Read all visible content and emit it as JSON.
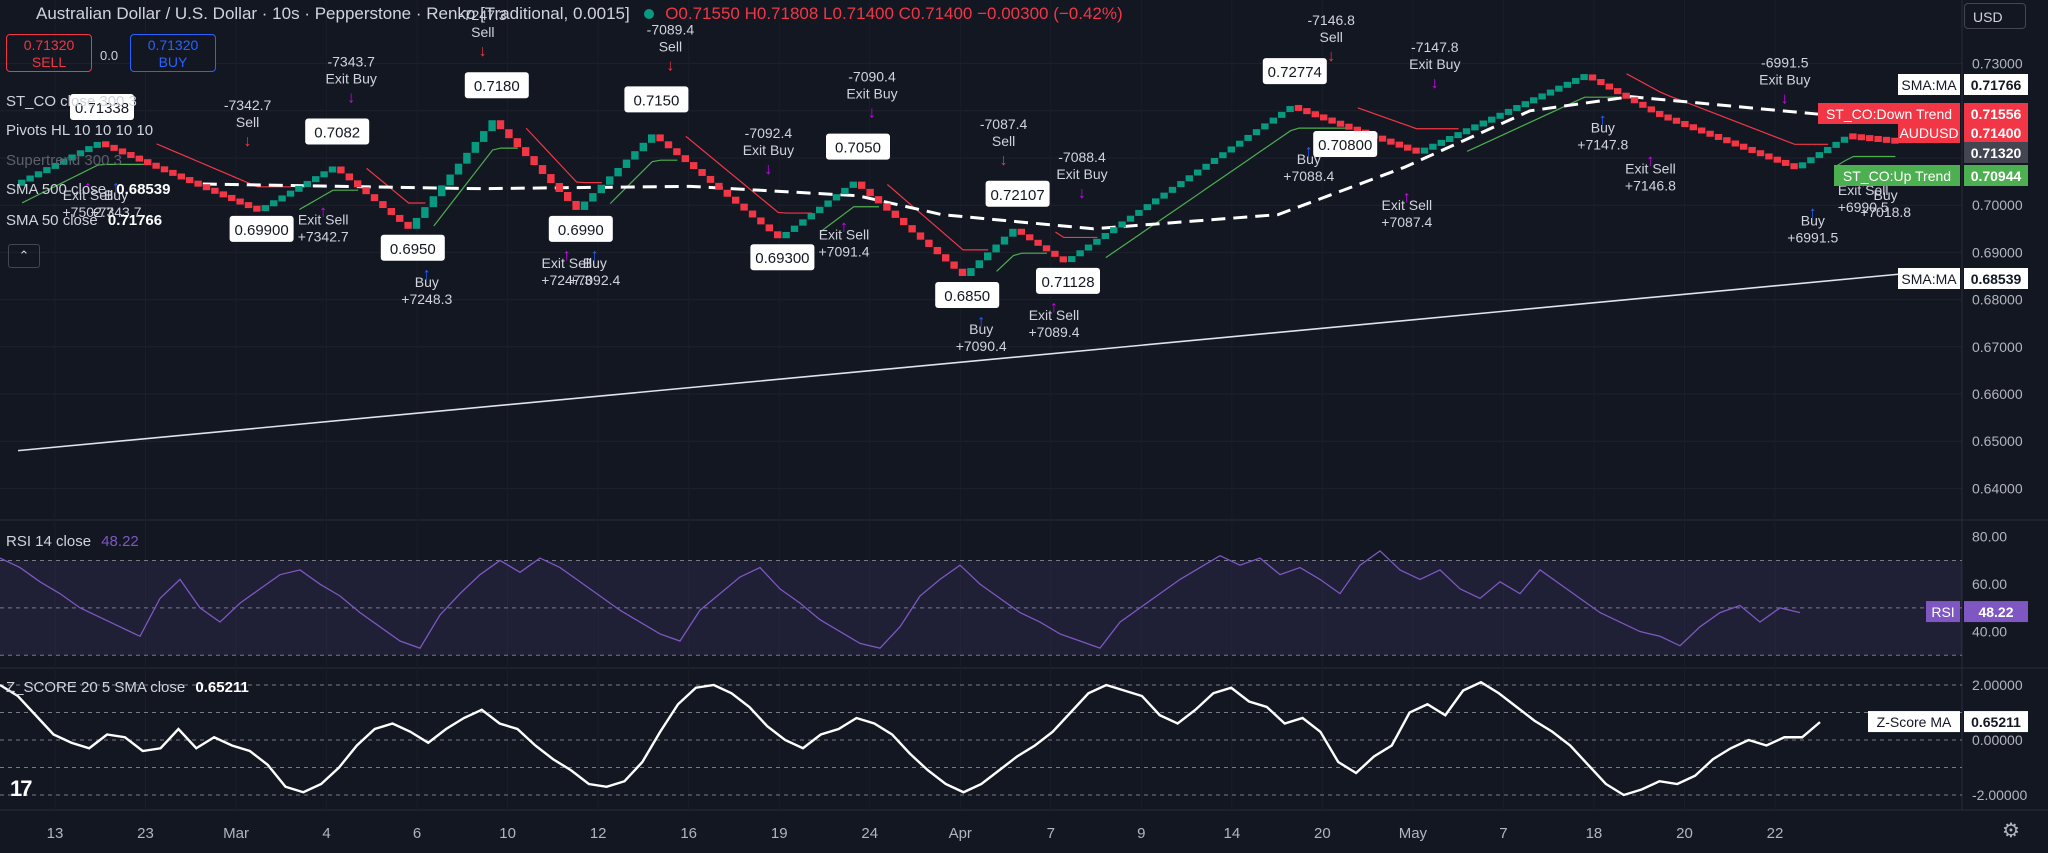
{
  "header": {
    "title": "Australian Dollar / U.S. Dollar · 10s · Pepperstone · Renko [Traditional, 0.0015]",
    "ohlc": "O0.71550 H0.71808 L0.71400 C0.71400 −0.00300 (−0.42%)"
  },
  "trade_panel": {
    "sell_price": "0.71320",
    "sell_label": "SELL",
    "spread": "0.0",
    "buy_price": "0.71320",
    "buy_label": "BUY"
  },
  "currency": "USD",
  "indicator_legends": {
    "st_co": "ST_CO close 300 3",
    "pivots": "Pivots HL 10 10 10 10",
    "supertrend": "Supertrend 300 3",
    "sma500_label": "SMA 500 close",
    "sma500_value": "0.68539",
    "sma50_label": "SMA 50 close",
    "sma50_value": "0.71766",
    "rsi_label": "RSI 14 close",
    "rsi_value": "48.22",
    "z_label": "Z_SCORE 20 5 SMA close",
    "z_value": "0.65211"
  },
  "colors": {
    "background": "#131722",
    "up_brick": "#089981",
    "down_brick": "#f23645",
    "signal_marker": "#d500f9",
    "buy_arrow": "#2962ff",
    "sell_arrow": "#f23645",
    "rsi_line": "#7e57c2",
    "st_up": "#4caf50",
    "st_down": "#f23645"
  },
  "chart_data": [
    {
      "type": "renko",
      "title": "Australian Dollar / U.S. Dollar · 10s · Pepperstone · Renko [Traditional, 0.0015]",
      "yticks": [
        "0.73000",
        "0.72000",
        "0.71000",
        "0.70000",
        "0.69000",
        "0.68000",
        "0.67000",
        "0.66000",
        "0.65000",
        "0.64000"
      ],
      "ylim": [
        0.635,
        0.735
      ],
      "xticks": [
        "13",
        "23",
        "Mar",
        "4",
        "6",
        "10",
        "12",
        "16",
        "19",
        "24",
        "Apr",
        "7",
        "9",
        "14",
        "20",
        "May",
        "7",
        "18",
        "20",
        "22"
      ],
      "brick_size": 0.0015,
      "renko_path": [
        {
          "x": 0,
          "y": 0.7045
        },
        {
          "x": 10,
          "y": 0.7134
        },
        {
          "x": 29,
          "y": 0.699
        },
        {
          "x": 38,
          "y": 0.7082
        },
        {
          "x": 47,
          "y": 0.695
        },
        {
          "x": 57,
          "y": 0.718
        },
        {
          "x": 67,
          "y": 0.699
        },
        {
          "x": 76,
          "y": 0.715
        },
        {
          "x": 91,
          "y": 0.693
        },
        {
          "x": 100,
          "y": 0.705
        },
        {
          "x": 113,
          "y": 0.685
        },
        {
          "x": 119,
          "y": 0.695
        },
        {
          "x": 125,
          "y": 0.688
        },
        {
          "x": 152,
          "y": 0.721
        },
        {
          "x": 158,
          "y": 0.717
        },
        {
          "x": 167,
          "y": 0.7113
        },
        {
          "x": 187,
          "y": 0.7277
        },
        {
          "x": 196,
          "y": 0.719
        },
        {
          "x": 212,
          "y": 0.708
        },
        {
          "x": 218,
          "y": 0.7145
        },
        {
          "x": 224,
          "y": 0.7134
        }
      ],
      "annotations": [
        {
          "text": "0.71338",
          "kind": "pivot-high"
        },
        {
          "text": "0.69900",
          "kind": "pivot-low"
        },
        {
          "text": "0.7082",
          "kind": "pivot-high"
        },
        {
          "text": "0.6950",
          "kind": "pivot-low"
        },
        {
          "text": "0.7180",
          "kind": "pivot-high"
        },
        {
          "text": "0.6990",
          "kind": "pivot-low"
        },
        {
          "text": "0.7150",
          "kind": "pivot-high"
        },
        {
          "text": "0.69300",
          "kind": "pivot-low"
        },
        {
          "text": "0.7050",
          "kind": "pivot-high"
        },
        {
          "text": "0.6850",
          "kind": "pivot-low"
        },
        {
          "text": "0.72107",
          "kind": "pivot-high"
        },
        {
          "text": "0.71128",
          "kind": "pivot-low"
        },
        {
          "text": "0.72774",
          "kind": "pivot-high"
        },
        {
          "text": "0.70800",
          "kind": "pivot-low"
        }
      ],
      "trade_labels": [
        {
          "text": [
            "Exit Sell",
            "+7502.7"
          ],
          "kind": "exit-sell"
        },
        {
          "text": [
            "Buy",
            "+7343.7"
          ],
          "kind": "buy"
        },
        {
          "text": [
            "-7342.7",
            "Sell"
          ],
          "kind": "sell"
        },
        {
          "text": [
            "-7343.7",
            "Exit Buy"
          ],
          "kind": "exit-buy"
        },
        {
          "text": [
            "Exit Sell",
            "+7342.7"
          ],
          "kind": "exit-sell"
        },
        {
          "text": [
            "Buy",
            "+7248.3"
          ],
          "kind": "buy"
        },
        {
          "text": [
            "-7247.3",
            "Sell"
          ],
          "kind": "sell"
        },
        {
          "text": [
            "Buy",
            "+7092.4"
          ],
          "kind": "buy"
        },
        {
          "text": [
            "Exit Sell",
            "+7247.3"
          ],
          "kind": "exit-sell"
        },
        {
          "text": [
            "-7089.4",
            "Sell"
          ],
          "kind": "sell"
        },
        {
          "text": [
            "-7092.4",
            "Exit Buy"
          ],
          "kind": "exit-buy"
        },
        {
          "text": [
            "-7090.4",
            "Exit Buy"
          ],
          "kind": "exit-buy"
        },
        {
          "text": [
            "Exit Sell",
            "+7091.4"
          ],
          "kind": "exit-sell"
        },
        {
          "text": [
            "Buy",
            "+7090.4"
          ],
          "kind": "buy"
        },
        {
          "text": [
            "-7087.4",
            "Sell"
          ],
          "kind": "sell"
        },
        {
          "text": [
            "-7088.4",
            "Exit Buy"
          ],
          "kind": "exit-buy"
        },
        {
          "text": [
            "Exit Sell",
            "+7089.4"
          ],
          "kind": "exit-sell"
        },
        {
          "text": [
            "Buy",
            "+7088.4"
          ],
          "kind": "buy"
        },
        {
          "text": [
            "-7146.8",
            "Sell"
          ],
          "kind": "sell"
        },
        {
          "text": [
            "-7147.8",
            "Exit Buy"
          ],
          "kind": "exit-buy"
        },
        {
          "text": [
            "Exit Sell",
            "+7087.4"
          ],
          "kind": "exit-sell"
        },
        {
          "text": [
            "Buy",
            "+7147.8"
          ],
          "kind": "buy"
        },
        {
          "text": [
            "Exit Sell",
            "+7146.8"
          ],
          "kind": "exit-sell"
        },
        {
          "text": [
            "Buy",
            "+6991.5"
          ],
          "kind": "buy"
        },
        {
          "text": [
            "-6991.5",
            "Exit Buy"
          ],
          "kind": "exit-buy"
        },
        {
          "text": [
            "Exit Sell",
            "+6990.5"
          ],
          "kind": "exit-sell"
        },
        {
          "text": [
            "Buy",
            "+7018.8"
          ],
          "kind": "buy"
        }
      ],
      "series": [
        {
          "name": "SMA 500 close",
          "values": [
            [
              0,
              0.648
            ],
            [
              224,
              0.6854
            ]
          ]
        },
        {
          "name": "SMA 50 close",
          "values": [
            [
              22,
              0.7045
            ],
            [
              55,
              0.7035
            ],
            [
              80,
              0.704
            ],
            [
              100,
              0.702
            ],
            [
              110,
              0.698
            ],
            [
              128,
              0.695
            ],
            [
              150,
              0.698
            ],
            [
              165,
              0.708
            ],
            [
              180,
              0.72
            ],
            [
              192,
              0.723
            ],
            [
              210,
              0.72
            ],
            [
              224,
              0.7177
            ]
          ]
        }
      ],
      "price_labels": [
        {
          "text": "SMA:MA",
          "value": "0.71766"
        },
        {
          "text": "ST_CO:Down Trend",
          "value": "0.71556"
        },
        {
          "text": "AUDUSD",
          "value": "0.71400"
        },
        {
          "text": "",
          "value": "0.71320"
        },
        {
          "text": "ST_CO:Up Trend",
          "value": "0.70944"
        },
        {
          "text": "SMA:MA",
          "value": "0.68539"
        }
      ]
    },
    {
      "type": "line",
      "title": "RSI 14 close",
      "yticks": [
        "80.00",
        "60.00",
        "40.00"
      ],
      "ylim": [
        28,
        82
      ],
      "levels": [
        70,
        50,
        30
      ],
      "series": [
        {
          "name": "RSI",
          "values": [
            71,
            67,
            61,
            56,
            50,
            46,
            42,
            38,
            54,
            62,
            50,
            44,
            52,
            58,
            64,
            66,
            60,
            55,
            48,
            42,
            36,
            33,
            47,
            56,
            64,
            70,
            65,
            71,
            67,
            61,
            55,
            49,
            44,
            39,
            36,
            49,
            56,
            63,
            67,
            58,
            52,
            45,
            40,
            35,
            33,
            42,
            55,
            62,
            68,
            60,
            54,
            48,
            44,
            39,
            36,
            33,
            44,
            50,
            56,
            62,
            67,
            72,
            68,
            71,
            64,
            67,
            62,
            56,
            68,
            74,
            66,
            62,
            66,
            58,
            54,
            61,
            56,
            66,
            60,
            54,
            48,
            44,
            40,
            38,
            34,
            42,
            48,
            51,
            44,
            50,
            48
          ]
        }
      ]
    },
    {
      "type": "line",
      "title": "Z_SCORE 20 5 SMA close",
      "yticks": [
        "2.00000",
        "0.00000",
        "-2.00000"
      ],
      "ylim": [
        -2.4,
        2.4
      ],
      "levels": [
        2,
        1,
        0,
        -1,
        -2
      ],
      "series": [
        {
          "name": "Z-Score MA",
          "values": [
            2.0,
            1.6,
            0.9,
            0.2,
            -0.1,
            -0.3,
            0.2,
            0.1,
            -0.4,
            -0.3,
            0.4,
            -0.3,
            0.1,
            -0.2,
            -0.4,
            -0.9,
            -1.7,
            -1.9,
            -1.6,
            -1.0,
            -0.2,
            0.4,
            0.6,
            0.3,
            -0.1,
            0.4,
            0.8,
            1.1,
            0.6,
            0.4,
            -0.2,
            -0.7,
            -1.1,
            -1.6,
            -1.7,
            -1.5,
            -0.8,
            0.3,
            1.3,
            1.9,
            2.0,
            1.7,
            1.2,
            0.5,
            0.0,
            -0.3,
            0.2,
            0.4,
            0.8,
            0.6,
            0.2,
            -0.5,
            -1.1,
            -1.6,
            -1.9,
            -1.6,
            -1.1,
            -0.6,
            -0.2,
            0.3,
            1.0,
            1.7,
            2.0,
            1.8,
            1.6,
            0.9,
            0.6,
            1.1,
            1.7,
            1.9,
            1.4,
            1.2,
            0.6,
            0.8,
            0.3,
            -0.8,
            -1.2,
            -0.6,
            -0.2,
            1.0,
            1.3,
            0.9,
            1.8,
            2.1,
            1.7,
            1.2,
            0.7,
            0.3,
            -0.2,
            -0.9,
            -1.6,
            -2.0,
            -1.8,
            -1.5,
            -1.6,
            -1.3,
            -0.7,
            -0.3,
            0.0,
            -0.2,
            0.1,
            0.1,
            0.65
          ]
        }
      ]
    }
  ]
}
